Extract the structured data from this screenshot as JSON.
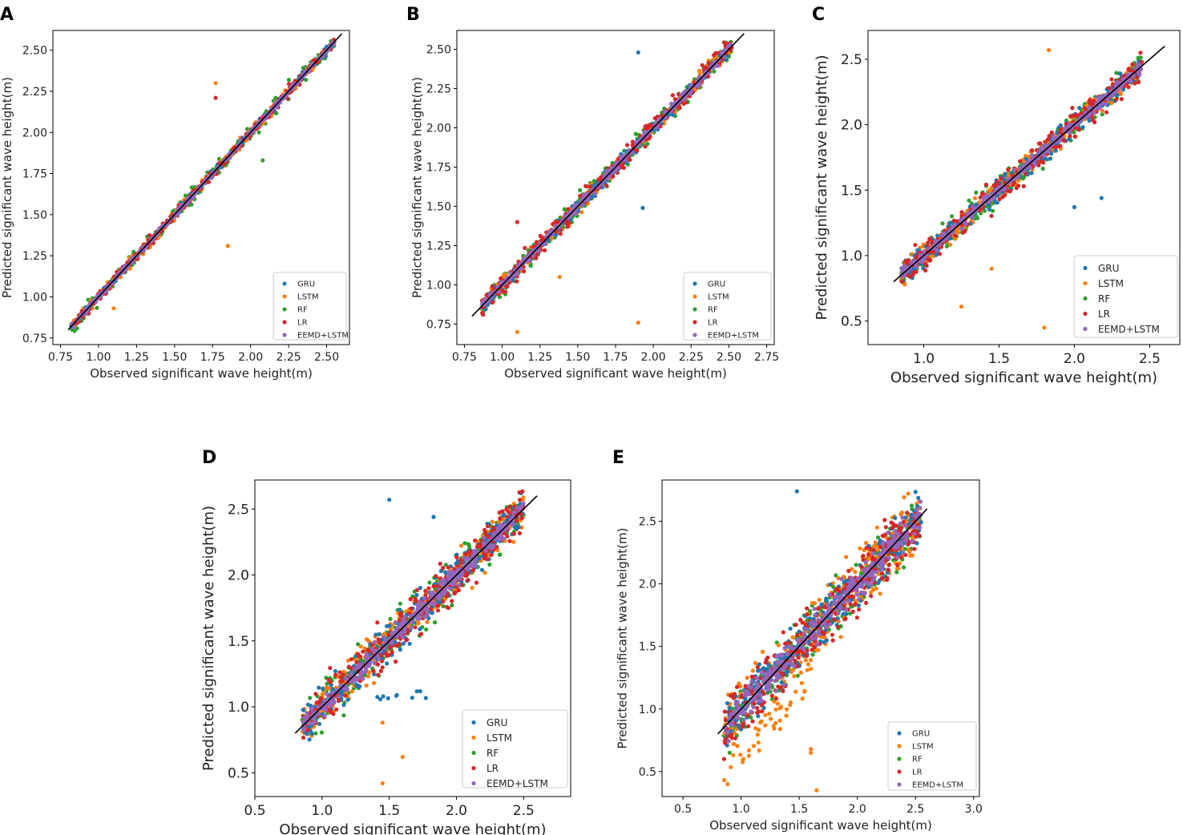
{
  "colors": {
    "GRU": "#1f77b4",
    "LSTM": "#ff7f0e",
    "RF": "#2ca02c",
    "LR": "#d62728",
    "EEMD+LSTM": "#9467bd",
    "identity_line": "#000000"
  },
  "chart_data": [
    {
      "panel": "A",
      "type": "scatter",
      "xlabel": "Observed significant wave height(m)",
      "ylabel": "Predicted significant wave height(m)",
      "xlim": [
        0.7,
        2.65
      ],
      "ylim": [
        0.71,
        2.62
      ],
      "xticks": [
        "0.75",
        "1.00",
        "1.25",
        "1.50",
        "1.75",
        "2.00",
        "2.25",
        "2.50"
      ],
      "yticks": [
        "0.75",
        "1.00",
        "1.25",
        "1.50",
        "1.75",
        "2.00",
        "2.25",
        "2.50"
      ],
      "series_names": [
        "GRU",
        "LSTM",
        "RF",
        "LR",
        "EEMD+LSTM"
      ],
      "legend_position": "lower-right",
      "identity_line": [
        0.8,
        2.6
      ],
      "obs_range": [
        0.82,
        2.55
      ],
      "spread": [
        0.02,
        0.03,
        0.045,
        0.03,
        0.015
      ],
      "outliers": [
        [
          1.77,
          2.3,
          "LSTM"
        ],
        [
          1.85,
          1.31,
          "LSTM"
        ],
        [
          1.1,
          0.93,
          "LSTM"
        ],
        [
          1.77,
          2.21,
          "LR"
        ],
        [
          2.08,
          1.83,
          "RF"
        ]
      ]
    },
    {
      "panel": "B",
      "type": "scatter",
      "xlabel": "Observed significant wave height(m)",
      "ylabel": "Predicted significant wave height(m)",
      "xlim": [
        0.7,
        2.8
      ],
      "ylim": [
        0.62,
        2.62
      ],
      "xticks": [
        "0.75",
        "1.00",
        "1.25",
        "1.50",
        "1.75",
        "2.00",
        "2.25",
        "2.50",
        "2.75"
      ],
      "yticks": [
        "0.75",
        "1.00",
        "1.25",
        "1.50",
        "1.75",
        "2.00",
        "2.25",
        "2.50"
      ],
      "series_names": [
        "GRU",
        "LSTM",
        "RF",
        "LR",
        "EEMD+LSTM"
      ],
      "legend_position": "lower-right",
      "identity_line": [
        0.8,
        2.6
      ],
      "obs_range": [
        0.86,
        2.52
      ],
      "spread": [
        0.04,
        0.045,
        0.06,
        0.06,
        0.03
      ],
      "outliers": [
        [
          1.9,
          2.48,
          "GRU"
        ],
        [
          1.93,
          1.49,
          "GRU"
        ],
        [
          1.1,
          0.7,
          "LSTM"
        ],
        [
          1.38,
          1.05,
          "LSTM"
        ],
        [
          1.9,
          0.76,
          "LSTM"
        ],
        [
          1.1,
          1.4,
          "LR"
        ]
      ]
    },
    {
      "panel": "C",
      "type": "scatter",
      "xlabel": "Observed significant wave height(m)",
      "ylabel": "Predicted significant wave height(m)",
      "xlim": [
        0.63,
        2.7
      ],
      "ylim": [
        0.32,
        2.72
      ],
      "xticks": [
        "1.0",
        "1.5",
        "2.0",
        "2.5"
      ],
      "yticks": [
        "0.5",
        "1.0",
        "1.5",
        "2.0",
        "2.5"
      ],
      "series_names": [
        "GRU",
        "LSTM",
        "RF",
        "LR",
        "EEMD+LSTM"
      ],
      "legend_position": "lower-right",
      "identity_line": [
        0.8,
        2.6
      ],
      "obs_range": [
        0.85,
        2.45
      ],
      "spread": [
        0.08,
        0.08,
        0.1,
        0.1,
        0.04
      ],
      "outliers": [
        [
          1.25,
          0.61,
          "LSTM"
        ],
        [
          1.8,
          0.45,
          "LSTM"
        ],
        [
          1.83,
          2.57,
          "LSTM"
        ],
        [
          1.45,
          0.9,
          "LSTM"
        ],
        [
          2.18,
          1.44,
          "GRU"
        ],
        [
          2.0,
          1.37,
          "GRU"
        ]
      ]
    },
    {
      "panel": "D",
      "type": "scatter",
      "xlabel": "Observed significant wave height(m)",
      "ylabel": "Predicted significant wave height(m)",
      "xlim": [
        0.5,
        2.85
      ],
      "ylim": [
        0.32,
        2.72
      ],
      "xticks": [
        "0.5",
        "1.0",
        "1.5",
        "2.0",
        "2.5"
      ],
      "yticks": [
        "0.5",
        "1.0",
        "1.5",
        "2.0",
        "2.5"
      ],
      "series_names": [
        "GRU",
        "LSTM",
        "RF",
        "LR",
        "EEMD+LSTM"
      ],
      "legend_position": "lower-right",
      "identity_line": [
        0.8,
        2.6
      ],
      "obs_range": [
        0.85,
        2.5
      ],
      "spread": [
        0.14,
        0.15,
        0.15,
        0.16,
        0.07
      ],
      "outliers": [
        [
          1.5,
          2.57,
          "GRU"
        ],
        [
          1.45,
          0.88,
          "LSTM"
        ],
        [
          1.6,
          0.62,
          "LSTM"
        ],
        [
          1.45,
          0.42,
          "LSTM"
        ],
        [
          1.83,
          2.44,
          "GRU"
        ]
      ]
    },
    {
      "panel": "E",
      "type": "scatter",
      "xlabel": "Observed significant wave height(m)",
      "ylabel": "Predicted significant wave height(m)",
      "xlim": [
        0.32,
        3.05
      ],
      "ylim": [
        0.3,
        2.83
      ],
      "xticks": [
        "0.5",
        "1.0",
        "1.5",
        "2.0",
        "2.5",
        "3.0"
      ],
      "yticks": [
        "0.5",
        "1.0",
        "1.5",
        "2.0",
        "2.5"
      ],
      "series_names": [
        "GRU",
        "LSTM",
        "RF",
        "LR",
        "EEMD+LSTM"
      ],
      "legend_position": "lower-right",
      "identity_line": [
        0.8,
        2.6
      ],
      "obs_range": [
        0.85,
        2.55
      ],
      "spread": [
        0.18,
        0.24,
        0.2,
        0.22,
        0.13
      ],
      "outliers": [
        [
          1.48,
          2.74,
          "GRU"
        ],
        [
          1.5,
          0.26,
          "LSTM"
        ],
        [
          1.65,
          0.35,
          "LSTM"
        ],
        [
          1.6,
          0.65,
          "LSTM"
        ],
        [
          1.02,
          0.6,
          "LSTM"
        ],
        [
          1.6,
          0.68,
          "LSTM"
        ]
      ]
    }
  ]
}
